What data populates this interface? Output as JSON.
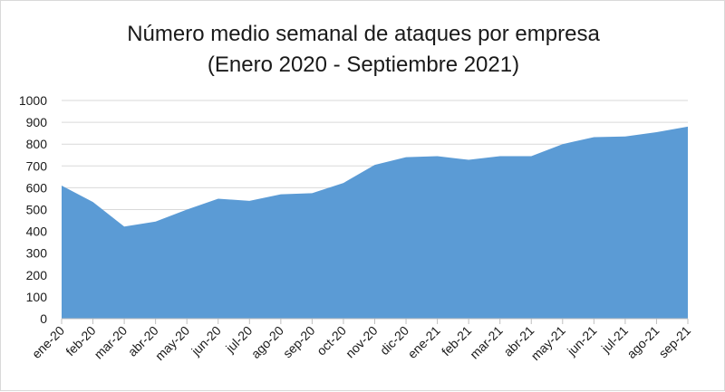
{
  "chart_data": {
    "type": "area",
    "title": "Número medio semanal de ataques por empresa",
    "subtitle": "(Enero 2020 - Septiembre 2021)",
    "xlabel": "",
    "ylabel": "",
    "categories": [
      "ene-20",
      "feb-20",
      "mar-20",
      "abr-20",
      "may-20",
      "jun-20",
      "jul-20",
      "ago-20",
      "sep-20",
      "oct-20",
      "nov-20",
      "dic-20",
      "ene-21",
      "feb-21",
      "mar-21",
      "abr-21",
      "may-21",
      "jun-21",
      "jul-21",
      "ago-21",
      "sep-21"
    ],
    "values": [
      610,
      535,
      422,
      445,
      500,
      550,
      540,
      570,
      575,
      622,
      705,
      740,
      745,
      728,
      745,
      745,
      800,
      832,
      835,
      855,
      880
    ],
    "ylim": [
      0,
      1000
    ],
    "yticks": [
      0,
      100,
      200,
      300,
      400,
      500,
      600,
      700,
      800,
      900,
      1000
    ],
    "grid": true,
    "legend": "none",
    "colors": {
      "fill": "#5b9bd5",
      "grid": "#d9d9d9",
      "text": "#1a1a1a"
    }
  }
}
